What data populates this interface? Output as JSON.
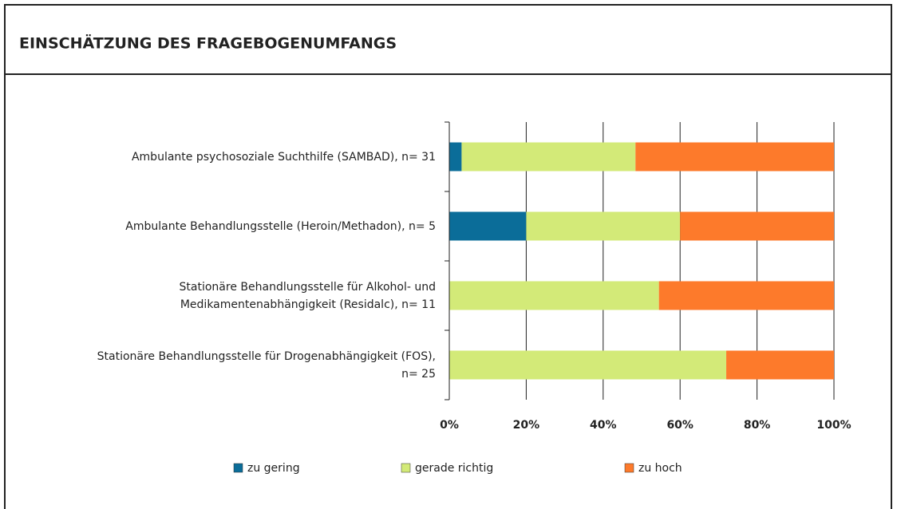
{
  "chart_data": {
    "type": "stacked_barh",
    "title": "EINSCHÄTZUNG DES FRAGEBOGENUMFANGS",
    "categories": [
      "Ambulante psychosoziale Suchthilfe (SAMBAD), n= 31",
      "Ambulante Behandlungsstelle (Heroin/Methadon), n= 5",
      "Stationäre Behandlungsstelle für Alkohol- und\nMedikamentenabhängigkeit (Residalc), n= 11",
      "Stationäre Behandlungsstelle für Drogenabhängigkeit (FOS),\nn= 25"
    ],
    "series": [
      {
        "name": "zu gering",
        "color": "#0b6d99",
        "values": [
          3.2,
          20,
          0,
          0
        ]
      },
      {
        "name": "gerade richtig",
        "color": "#d3ea78",
        "values": [
          45.2,
          40,
          54.5,
          72
        ]
      },
      {
        "name": "zu hoch",
        "color": "#fd7a2b",
        "values": [
          51.6,
          40,
          45.5,
          28
        ]
      }
    ],
    "xlim": [
      0,
      100
    ],
    "xticks": [
      {
        "value": 0,
        "label": "0%"
      },
      {
        "value": 20,
        "label": "20%"
      },
      {
        "value": 40,
        "label": "40%"
      },
      {
        "value": 60,
        "label": "60%"
      },
      {
        "value": 80,
        "label": "80%"
      },
      {
        "value": 100,
        "label": "100%"
      }
    ],
    "grid": true,
    "legend": "bottom"
  }
}
